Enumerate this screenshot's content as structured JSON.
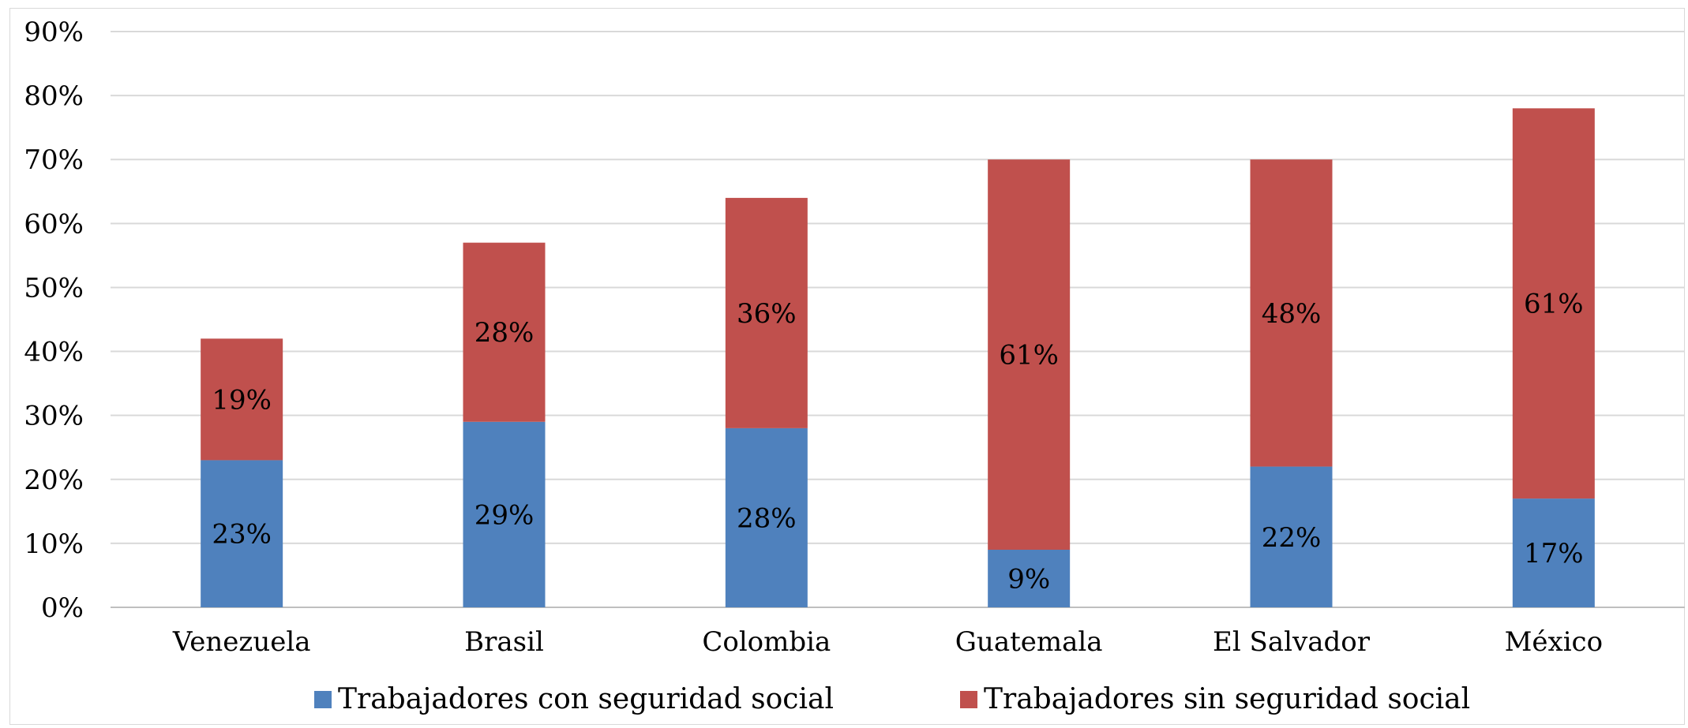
{
  "chart_data": {
    "type": "bar",
    "stacked": true,
    "categories": [
      "Venezuela",
      "Brasil",
      "Colombia",
      "Guatemala",
      "El Salvador",
      "México"
    ],
    "series": [
      {
        "name": "Trabajadores con seguridad social",
        "values": [
          23,
          29,
          28,
          9,
          22,
          17
        ],
        "labels": [
          "23%",
          "29%",
          "28%",
          "9%",
          "22%",
          "17%"
        ],
        "color": "#4f81bd"
      },
      {
        "name": "Trabajadores sin seguridad social",
        "values": [
          19,
          28,
          36,
          61,
          48,
          61
        ],
        "labels": [
          "19%",
          "28%",
          "36%",
          "61%",
          "48%",
          "61%"
        ],
        "color": "#c0504d"
      }
    ],
    "yticks": [
      "0%",
      "10%",
      "20%",
      "30%",
      "40%",
      "50%",
      "60%",
      "70%",
      "80%",
      "90%"
    ],
    "ylim": [
      0,
      90
    ],
    "grid": true,
    "legend_position": "bottom",
    "title": "",
    "xlabel": "",
    "ylabel": ""
  },
  "colors": {
    "gridline": "#d9d9d9",
    "axis": "#bfbfbf"
  }
}
